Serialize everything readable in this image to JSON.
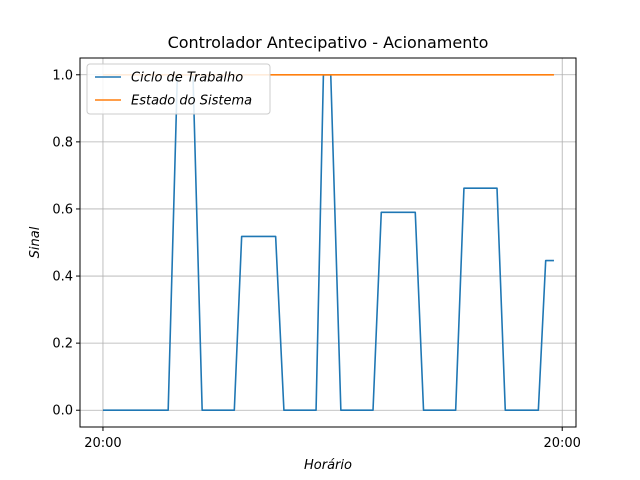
{
  "chart_data": {
    "type": "line",
    "title": "Controlador Antecipativo - Acionamento",
    "xlabel": "Horário",
    "ylabel": "Sinal",
    "ylim": [
      -0.05,
      1.05
    ],
    "xlim": [
      -0.05,
      1.03
    ],
    "x_ticks": [
      {
        "value": 0,
        "label": "20:00"
      },
      {
        "value": 1,
        "label": "20:00"
      }
    ],
    "y_ticks": [
      0.0,
      0.2,
      0.4,
      0.6,
      0.8,
      1.0
    ],
    "y_tick_labels": [
      "0.0",
      "0.2",
      "0.4",
      "0.6",
      "0.8",
      "1.0"
    ],
    "grid": true,
    "legend_position": "upper-left",
    "series": [
      {
        "name": "Ciclo de Trabalho",
        "color": "#1f77b4",
        "points": [
          [
            0.0,
            0.0
          ],
          [
            0.142,
            0.0
          ],
          [
            0.162,
            1.0
          ],
          [
            0.196,
            1.0
          ],
          [
            0.216,
            0.0
          ],
          [
            0.286,
            0.0
          ],
          [
            0.302,
            0.518
          ],
          [
            0.376,
            0.518
          ],
          [
            0.394,
            0.0
          ],
          [
            0.464,
            0.0
          ],
          [
            0.48,
            1.0
          ],
          [
            0.496,
            1.0
          ],
          [
            0.518,
            0.0
          ],
          [
            0.588,
            0.0
          ],
          [
            0.606,
            0.59
          ],
          [
            0.68,
            0.59
          ],
          [
            0.698,
            0.0
          ],
          [
            0.768,
            0.0
          ],
          [
            0.786,
            0.662
          ],
          [
            0.858,
            0.662
          ],
          [
            0.876,
            0.0
          ],
          [
            0.948,
            0.0
          ],
          [
            0.964,
            0.446
          ],
          [
            0.982,
            0.446
          ]
        ]
      },
      {
        "name": "Estado do Sistema",
        "color": "#ff7f0e",
        "points": [
          [
            0.0,
            1.0
          ],
          [
            0.982,
            1.0
          ]
        ]
      }
    ]
  }
}
